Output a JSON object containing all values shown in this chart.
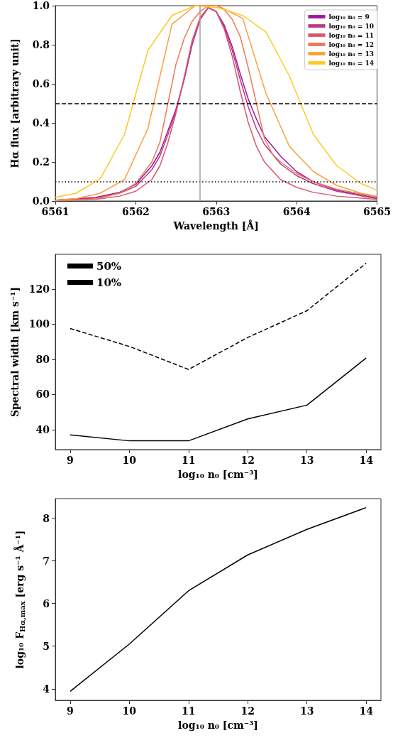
{
  "chart_data": [
    {
      "type": "line",
      "xlabel": "Wavelength [Å]",
      "ylabel": "Hα flux [arbitrary unit]",
      "xlim": [
        6561,
        6565
      ],
      "ylim": [
        0,
        1
      ],
      "xticks": [
        6561,
        6562,
        6563,
        6564,
        6565
      ],
      "yticks": [
        {
          "value": 0,
          "label": "0.0"
        },
        0.2,
        0.4,
        0.6,
        0.8,
        {
          "value": 1,
          "label": "1.0"
        }
      ],
      "grid": false,
      "legend": "top right",
      "marker": "none",
      "line_style": "solid",
      "series": [
        {
          "name": "log₁₀ n₀ = 9",
          "color": "#9c179e",
          "x": [
            6561,
            6561.5,
            6561.8,
            6562,
            6562.2,
            6562.3,
            6562.4,
            6562.5,
            6562.6,
            6562.7,
            6562.8,
            6562.9,
            6563,
            6563.1,
            6563.2,
            6563.3,
            6563.4,
            6563.5,
            6563.6,
            6563.8,
            6564,
            6564.2,
            6564.5,
            6565
          ],
          "values": [
            0.005,
            0.018,
            0.045,
            0.085,
            0.18,
            0.25,
            0.36,
            0.47,
            0.62,
            0.8,
            0.93,
            0.99,
            0.97,
            0.9,
            0.79,
            0.65,
            0.52,
            0.42,
            0.33,
            0.23,
            0.15,
            0.1,
            0.055,
            0.015
          ]
        },
        {
          "name": "log₁₀ n₀ = 10",
          "color": "#bd3786",
          "x": [
            6561,
            6561.5,
            6561.8,
            6562,
            6562.2,
            6562.3,
            6562.4,
            6562.5,
            6562.6,
            6562.7,
            6562.8,
            6562.9,
            6563,
            6563.1,
            6563.2,
            6563.3,
            6563.4,
            6563.5,
            6563.6,
            6563.8,
            6564,
            6564.2,
            6564.5,
            6565
          ],
          "values": [
            0.004,
            0.015,
            0.04,
            0.075,
            0.16,
            0.23,
            0.34,
            0.46,
            0.62,
            0.8,
            0.93,
            0.99,
            0.97,
            0.89,
            0.77,
            0.62,
            0.48,
            0.37,
            0.29,
            0.19,
            0.13,
            0.09,
            0.05,
            0.012
          ]
        },
        {
          "name": "log₁₀ n₀ = 11",
          "color": "#d8576b",
          "x": [
            6561,
            6561.5,
            6561.8,
            6562,
            6562.2,
            6562.3,
            6562.4,
            6562.5,
            6562.6,
            6562.7,
            6562.8,
            6562.9,
            6563,
            6563.1,
            6563.2,
            6563.3,
            6563.4,
            6563.5,
            6563.6,
            6563.8,
            6564,
            6564.2,
            6564.5,
            6565
          ],
          "values": [
            0.002,
            0.008,
            0.025,
            0.05,
            0.11,
            0.18,
            0.3,
            0.45,
            0.63,
            0.82,
            0.94,
            0.99,
            0.97,
            0.88,
            0.74,
            0.56,
            0.4,
            0.28,
            0.2,
            0.11,
            0.07,
            0.045,
            0.025,
            0.008
          ]
        },
        {
          "name": "log₁₀ n₀ = 12",
          "color": "#ed7953",
          "x": [
            6561,
            6561.5,
            6561.8,
            6562,
            6562.2,
            6562.3,
            6562.4,
            6562.5,
            6562.6,
            6562.7,
            6562.8,
            6562.9,
            6563,
            6563.1,
            6563.2,
            6563.3,
            6563.4,
            6563.5,
            6563.6,
            6563.7,
            6563.8,
            6564,
            6564.2,
            6564.5,
            6565
          ],
          "values": [
            0.002,
            0.01,
            0.04,
            0.09,
            0.2,
            0.3,
            0.5,
            0.7,
            0.83,
            0.92,
            0.97,
            1,
            1,
            0.98,
            0.93,
            0.84,
            0.68,
            0.5,
            0.32,
            0.24,
            0.2,
            0.14,
            0.1,
            0.06,
            0.02
          ]
        },
        {
          "name": "log₁₀ n₀ = 13",
          "color": "#fb9f3a",
          "x": [
            6561,
            6561.26,
            6561.56,
            6561.86,
            6562.15,
            6562.45,
            6562.74,
            6563.02,
            6563.33,
            6563.62,
            6563.91,
            6564.21,
            6564.5,
            6564.8,
            6565
          ],
          "values": [
            0.004,
            0.013,
            0.04,
            0.11,
            0.37,
            0.905,
            1,
            1,
            0.935,
            0.55,
            0.28,
            0.15,
            0.08,
            0.04,
            0.025
          ]
        },
        {
          "name": "log₁₀ n₀ = 14",
          "color": "#fdca26",
          "x": [
            6561,
            6561.26,
            6561.56,
            6561.86,
            6562.15,
            6562.45,
            6562.74,
            6563.02,
            6563.33,
            6563.62,
            6563.91,
            6564.21,
            6564.5,
            6564.8,
            6565
          ],
          "values": [
            0.019,
            0.04,
            0.115,
            0.34,
            0.77,
            0.95,
            1,
            0.99,
            0.95,
            0.865,
            0.64,
            0.34,
            0.18,
            0.09,
            0.054
          ]
        }
      ],
      "ref_lines": [
        {
          "axis": "y",
          "value": 0.5,
          "color": "#000000",
          "line_style": "dashed"
        },
        {
          "axis": "y",
          "value": 0.1,
          "color": "#000000",
          "line_style": "dotted"
        },
        {
          "axis": "x",
          "value": 6562.8,
          "color": "#a0a0a0",
          "line_style": "solid"
        }
      ]
    },
    {
      "type": "line",
      "xlabel": "log₁₀ n₀ [cm⁻³]",
      "ylabel": "Spectral width [km s⁻¹]",
      "xlim": [
        8.75,
        14.25
      ],
      "ylim": [
        28.6,
        139.7
      ],
      "xticks": [
        9,
        10,
        11,
        12,
        13,
        14
      ],
      "yticks": [
        40,
        60,
        80,
        100,
        120
      ],
      "grid": false,
      "legend": "top left",
      "marker": "none",
      "series": [
        {
          "name": "50%",
          "color": "#000000",
          "line_style": "solid",
          "x": [
            9,
            10,
            11,
            12,
            13,
            14
          ],
          "values": [
            37.0,
            33.6,
            33.6,
            46.1,
            53.9,
            80.7
          ]
        },
        {
          "name": "10%",
          "color": "#000000",
          "line_style": "dashed",
          "x": [
            9,
            10,
            11,
            12,
            13,
            14
          ],
          "values": [
            97.5,
            87.3,
            74.2,
            92.4,
            107.6,
            134.6
          ]
        }
      ]
    },
    {
      "type": "line",
      "xlabel": "log₁₀ n₀ [cm⁻³]",
      "ylabel": "log₁₀ F$_{Hα,max}$ [erg s⁻¹ Å⁻¹]",
      "xlim": [
        8.75,
        14.25
      ],
      "ylim": [
        3.73,
        8.46
      ],
      "xticks": [
        9,
        10,
        11,
        12,
        13,
        14
      ],
      "yticks": [
        4,
        5,
        6,
        7,
        8
      ],
      "grid": false,
      "marker": "none",
      "line_style": "solid",
      "series": [
        {
          "color": "#000000",
          "x": [
            9,
            10,
            11,
            12,
            13,
            14
          ],
          "values": [
            3.94,
            5.05,
            6.3,
            7.14,
            7.74,
            8.25
          ]
        }
      ]
    }
  ]
}
